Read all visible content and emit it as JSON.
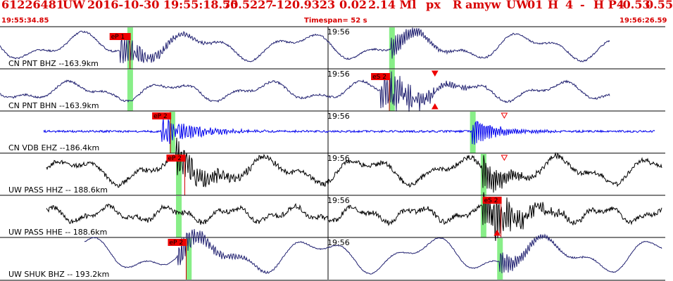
{
  "header": {
    "event_id": "61226481",
    "network": "UW",
    "datetime": "2016-10-30 19:55:18.75",
    "latitude": "50.5227",
    "longitude": "-120.9323",
    "depth": "0.02",
    "magnitude": "2.14 Ml",
    "code1": "px",
    "code2": "R",
    "code3": "amyw",
    "station_net": "UW",
    "station_num": "01",
    "flag1": "H",
    "flag2": "4",
    "flag3": "-",
    "flag4": "H P4",
    "val1": "-0.53",
    "val2": "0.55"
  },
  "subheader": {
    "start_time": "19:55:34.85",
    "timespan": "Timespan=  52 s",
    "end_time": "19:56:26.59"
  },
  "minute_mark": "19:56",
  "colors": {
    "header_text": "#d80000",
    "trace_navy": "#202070",
    "trace_blue": "#0000ee",
    "trace_black": "#000000",
    "pick_box": "#ee0000",
    "pick_marker": "#88ee88"
  },
  "panels": [
    {
      "label": "CN PNT BHZ --163.9km",
      "trace_color": "navy",
      "pick": "eP 1",
      "picks": [
        {
          "label": "eP 1",
          "time": 16.8
        }
      ],
      "green_marks": [
        18.1,
        54.7
      ],
      "triangles": []
    },
    {
      "label": "CN PNT BHN --163.9km",
      "trace_color": "navy",
      "pick": "eS 2",
      "picks": [
        {
          "label": "eS 2",
          "time": 53.2
        }
      ],
      "green_marks": [
        18.1,
        54.7
      ],
      "triangles": [
        {
          "time": 60.8,
          "pos": "top",
          "filled": true
        },
        {
          "time": 60.8,
          "pos": "bottom",
          "filled": true
        }
      ]
    },
    {
      "label": "CN VDB EHZ --186.4km",
      "trace_color": "blue",
      "pick": "eP 2",
      "picks": [
        {
          "label": "eP 2",
          "time": 22.6
        }
      ],
      "green_marks": [
        24.0,
        66.0
      ],
      "triangles": [
        {
          "time": 70.5,
          "pos": "top",
          "filled": false
        }
      ]
    },
    {
      "label": "UW PASS HHZ -- 188.6km",
      "trace_color": "black",
      "pick": "eP 2",
      "picks": [
        {
          "label": "eP 2",
          "time": 24.6
        }
      ],
      "green_marks": [
        24.9,
        67.5
      ],
      "triangles": [
        {
          "time": 70.5,
          "pos": "top",
          "filled": false
        }
      ]
    },
    {
      "label": "UW PASS HHE -- 188.6km",
      "trace_color": "black",
      "pick": "eS 2",
      "picks": [
        {
          "label": "eS 2",
          "time": 68.8
        }
      ],
      "green_marks": [
        24.9,
        67.5
      ],
      "triangles": [
        {
          "time": 69.5,
          "pos": "bottom",
          "filled": true
        }
      ]
    },
    {
      "label": "UW SHUK BHZ -- 193.2km",
      "trace_color": "navy",
      "pick": "eP 2",
      "picks": [
        {
          "label": "eP 2",
          "time": 24.8
        }
      ],
      "green_marks": [
        26.3,
        69.8
      ],
      "triangles": []
    }
  ]
}
